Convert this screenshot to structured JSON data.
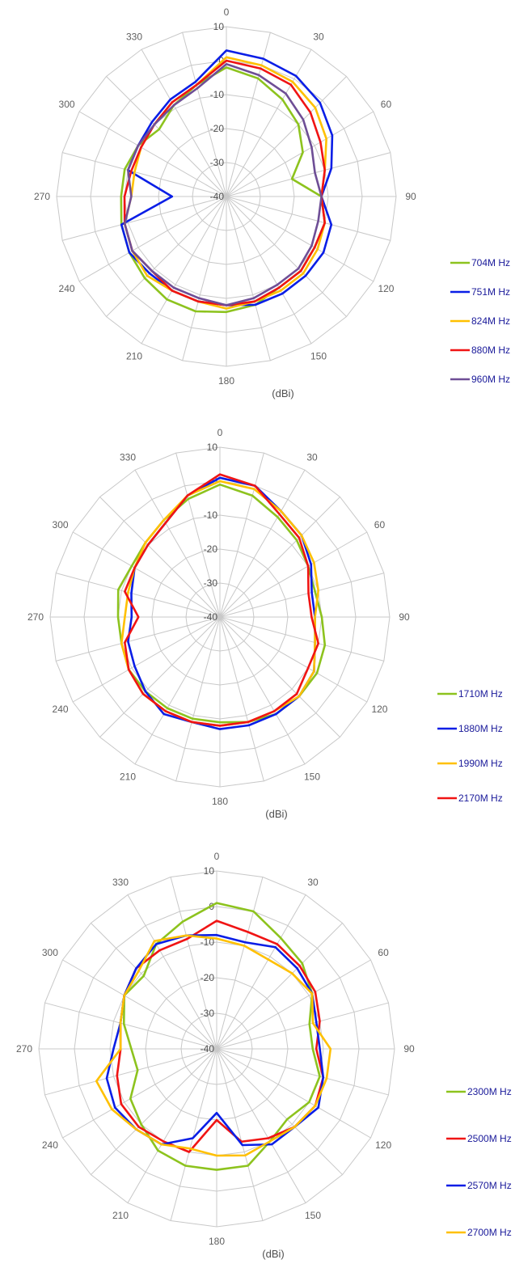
{
  "chart_data": [
    {
      "type": "polar-line",
      "unit_label": "(dBi)",
      "angle_labels": [
        "0",
        "30",
        "60",
        "90",
        "120",
        "150",
        "180",
        "210",
        "240",
        "270",
        "300",
        "330"
      ],
      "radial_labels": [
        "10",
        "0",
        "-10",
        "-20",
        "-30",
        "-40"
      ],
      "rlim": [
        -40,
        10
      ],
      "angles": [
        0,
        15,
        30,
        45,
        60,
        75,
        90,
        105,
        120,
        135,
        150,
        165,
        180,
        195,
        210,
        225,
        240,
        255,
        270,
        285,
        300,
        315,
        330,
        345
      ],
      "series": [
        {
          "name": "704M Hz",
          "color": "#8DC31E",
          "values": [
            -2,
            -4,
            -7,
            -10,
            -14,
            -20,
            -12,
            -10,
            -10,
            -9,
            -9,
            -7,
            -6,
            -5,
            -5,
            -6,
            -7,
            -8,
            -9,
            -9,
            -10,
            -12,
            -9,
            -6
          ]
        },
        {
          "name": "751M Hz",
          "color": "#0A1EE6",
          "values": [
            3,
            2,
            1,
            -1,
            -4,
            -8,
            -12,
            -8,
            -7,
            -7,
            -7,
            -7,
            -8,
            -8,
            -8,
            -8,
            -7,
            -8,
            -24,
            -10,
            -10,
            -9,
            -7,
            -5
          ]
        },
        {
          "name": "824M Hz",
          "color": "#FFC000",
          "values": [
            1,
            0,
            -1,
            -3,
            -6,
            -10,
            -12,
            -10,
            -9,
            -8,
            -8,
            -8,
            -7,
            -8,
            -8,
            -7,
            -8,
            -9,
            -12,
            -12,
            -11,
            -10,
            -8,
            -6
          ]
        },
        {
          "name": "880M Hz",
          "color": "#F01414",
          "values": [
            0,
            -1,
            -2,
            -5,
            -8,
            -10,
            -12,
            -10,
            -10,
            -9,
            -9,
            -8,
            -8,
            -8,
            -8,
            -9,
            -8,
            -9,
            -10,
            -11,
            -11,
            -10,
            -8,
            -6
          ]
        },
        {
          "name": "960M Hz",
          "color": "#6E4E96",
          "values": [
            -1,
            -3,
            -5,
            -8,
            -11,
            -13,
            -12,
            -12,
            -11,
            -10,
            -10,
            -9,
            -8,
            -9,
            -9,
            -9,
            -8,
            -9,
            -12,
            -10,
            -10,
            -10,
            -9,
            -7
          ]
        }
      ]
    },
    {
      "type": "polar-line",
      "unit_label": "(dBi)",
      "angle_labels": [
        "0",
        "30",
        "60",
        "90",
        "120",
        "150",
        "180",
        "210",
        "240",
        "270",
        "300",
        "330"
      ],
      "radial_labels": [
        "10",
        "0",
        "-10",
        "-20",
        "-30",
        "-40"
      ],
      "rlim": [
        -40,
        10
      ],
      "angles": [
        0,
        15,
        30,
        45,
        60,
        75,
        90,
        105,
        120,
        135,
        150,
        165,
        180,
        195,
        210,
        225,
        240,
        255,
        270,
        285,
        300,
        315,
        330,
        345
      ],
      "series": [
        {
          "name": "1710M Hz",
          "color": "#8DC31E",
          "values": [
            -1,
            -3,
            -6,
            -8,
            -10,
            -11,
            -10,
            -8,
            -7,
            -7,
            -7,
            -8,
            -9,
            -9,
            -9,
            -9,
            -9,
            -10,
            -10,
            -9,
            -10,
            -9,
            -7,
            -4
          ]
        },
        {
          "name": "1880M Hz",
          "color": "#0A1EE6",
          "values": [
            1,
            0,
            -4,
            -6,
            -9,
            -12,
            -12,
            -11,
            -8,
            -7,
            -7,
            -7,
            -7,
            -8,
            -7,
            -9,
            -11,
            -12,
            -14,
            -13,
            -11,
            -10,
            -8,
            -3
          ]
        },
        {
          "name": "1990M Hz",
          "color": "#FFC000",
          "values": [
            0,
            -1,
            -4,
            -6,
            -8,
            -10,
            -12,
            -11,
            -8,
            -7,
            -8,
            -8,
            -8,
            -8,
            -8,
            -8,
            -9,
            -10,
            -12,
            -12,
            -11,
            -9,
            -7,
            -3
          ]
        },
        {
          "name": "2170M Hz",
          "color": "#F01414",
          "values": [
            2,
            0,
            -5,
            -7,
            -10,
            -13,
            -13,
            -10,
            -10,
            -8,
            -8,
            -8,
            -8,
            -8,
            -8,
            -8,
            -9,
            -11,
            -16,
            -11,
            -11,
            -10,
            -8,
            -3
          ]
        }
      ]
    },
    {
      "type": "polar-line",
      "unit_label": "(dBi)",
      "angle_labels": [
        "0",
        "30",
        "60",
        "90",
        "120",
        "150",
        "180",
        "210",
        "240",
        "270",
        "300",
        "330"
      ],
      "radial_labels": [
        "10",
        "0",
        "-10",
        "-20",
        "-30",
        "-40"
      ],
      "rlim": [
        -40,
        10
      ],
      "angles": [
        0,
        15,
        30,
        45,
        60,
        75,
        90,
        105,
        120,
        135,
        150,
        165,
        180,
        195,
        210,
        225,
        240,
        255,
        270,
        285,
        300,
        315,
        330,
        345
      ],
      "series": [
        {
          "name": "2300M Hz",
          "color": "#8DC31E",
          "values": [
            1,
            0,
            -4,
            -6,
            -9,
            -13,
            -13,
            -10,
            -10,
            -12,
            -10,
            -6,
            -6,
            -6,
            -7,
            -10,
            -12,
            -17,
            -16,
            -13,
            -10,
            -11,
            -6,
            -3
          ]
        },
        {
          "name": "2500M Hz",
          "color": "#F01414",
          "values": [
            -4,
            -6,
            -6,
            -7,
            -8,
            -10,
            -12,
            -9,
            -8,
            -9,
            -11,
            -13,
            -20,
            -10,
            -10,
            -9,
            -9,
            -11,
            -13,
            -12,
            -10,
            -8,
            -8,
            -8
          ]
        },
        {
          "name": "2570M Hz",
          "color": "#0A1EE6",
          "values": [
            -8,
            -9,
            -7,
            -8,
            -9,
            -11,
            -11,
            -9,
            -7,
            -9,
            -9,
            -12,
            -22,
            -14,
            -9,
            -8,
            -7,
            -8,
            -11,
            -12,
            -10,
            -8,
            -6,
            -7
          ]
        },
        {
          "name": "2700M Hz",
          "color": "#FFC000",
          "values": [
            -9,
            -10,
            -11,
            -10,
            -9,
            -12,
            -8,
            -8,
            -8,
            -9,
            -10,
            -9,
            -10,
            -11,
            -9,
            -8,
            -6,
            -5,
            -13,
            -12,
            -10,
            -9,
            -5,
            -7
          ]
        }
      ]
    }
  ]
}
